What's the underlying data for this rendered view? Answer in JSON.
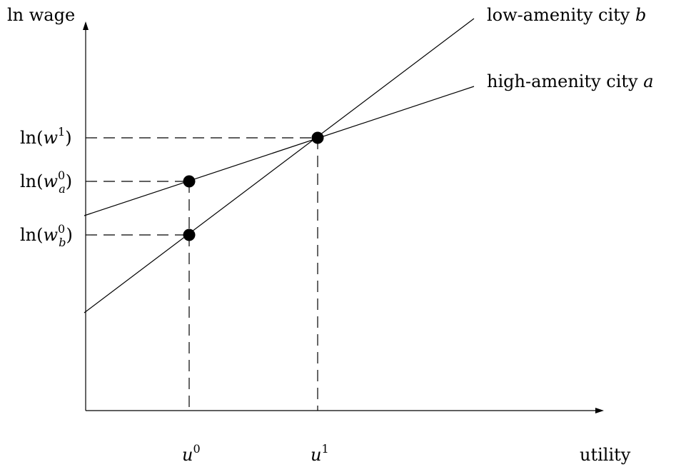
{
  "axes": {
    "y_label": "ln wage",
    "x_label": "utility"
  },
  "lines": [
    {
      "id": "low",
      "label_text": "low-amenity city ",
      "label_var": "b"
    },
    {
      "id": "high",
      "label_text": "high-amenity city ",
      "label_var": "a"
    }
  ],
  "y_ticks": {
    "w1": {
      "fn": "ln(",
      "var": "w",
      "sup": "1",
      "sub": "",
      "close": ")"
    },
    "wa0": {
      "fn": "ln(",
      "var": "w",
      "sup": "0",
      "sub": "a",
      "close": ")"
    },
    "wb0": {
      "fn": "ln(",
      "var": "w",
      "sup": "0",
      "sub": "b",
      "close": ")"
    }
  },
  "x_ticks": {
    "u0": {
      "var": "u",
      "sup": "0"
    },
    "u1": {
      "var": "u",
      "sup": "1"
    }
  },
  "points": [
    {
      "name": "u0-high-amenity"
    },
    {
      "name": "u0-low-amenity"
    },
    {
      "name": "u1-intersection"
    }
  ]
}
